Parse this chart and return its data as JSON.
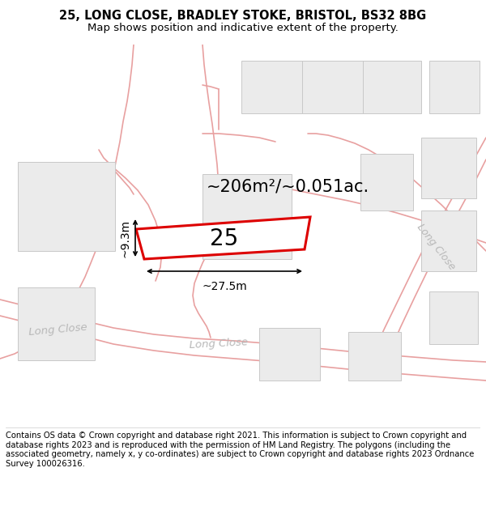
{
  "title_line1": "25, LONG CLOSE, BRADLEY STOKE, BRISTOL, BS32 8BG",
  "title_line2": "Map shows position and indicative extent of the property.",
  "footer_text": "Contains OS data © Crown copyright and database right 2021. This information is subject to Crown copyright and database rights 2023 and is reproduced with the permission of HM Land Registry. The polygons (including the associated geometry, namely x, y co-ordinates) are subject to Crown copyright and database rights 2023 Ordnance Survey 100026316.",
  "bg_color": "#ffffff",
  "map_bg": "#ffffff",
  "plot_number": "25",
  "area_label": "~206m²/~0.051ac.",
  "dim_width": "~27.5m",
  "dim_height": "~9.3m",
  "road_color": "#f0b8b8",
  "road_line_color": "#e8a0a0",
  "building_fill": "#ebebeb",
  "building_edge": "#c8c8c8",
  "plot_outline_color": "#dd0000",
  "road_label_color": "#b8b8b8",
  "title_fontsize": 10.5,
  "subtitle_fontsize": 9.5,
  "footer_fontsize": 7.2,
  "area_fontsize": 15,
  "plot_num_fontsize": 20,
  "dim_fontsize": 10
}
